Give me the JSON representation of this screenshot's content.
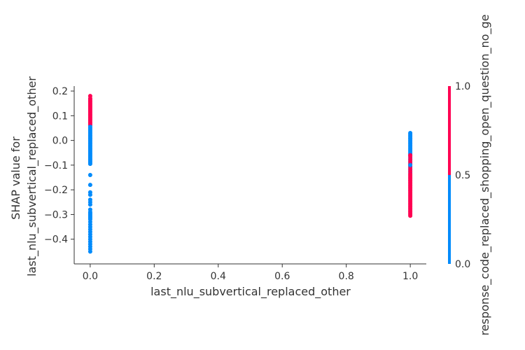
{
  "chart_data": {
    "type": "scatter",
    "title": "",
    "xlabel": "last_nlu_subvertical_replaced_other",
    "ylabel_lines": [
      "SHAP value for",
      "last_nlu_subvertical_replaced_other"
    ],
    "xlim": [
      -0.05,
      1.05
    ],
    "ylim": [
      -0.5,
      0.22
    ],
    "x_ticks": [
      0.0,
      0.2,
      0.4,
      0.6,
      0.8,
      1.0
    ],
    "x_tick_labels": [
      "0.0",
      "0.2",
      "0.4",
      "0.6",
      "0.8",
      "1.0"
    ],
    "y_ticks": [
      0.2,
      0.1,
      0.0,
      -0.1,
      -0.2,
      -0.3,
      -0.4
    ],
    "y_tick_labels": [
      "0.2",
      "0.1",
      "0.0",
      "−0.1",
      "−0.2",
      "−0.3",
      "−0.4"
    ],
    "grid": false,
    "colorbar": {
      "label": "response_code_replaced_shopping_open_question_no_ge",
      "ticks": [
        1.0,
        0.5,
        0.0
      ],
      "tick_labels": [
        "1.0",
        "0.5",
        "0.0"
      ],
      "color_high": "#ff0052",
      "color_low": "#008bfb"
    },
    "series": [
      {
        "x": [
          0,
          0,
          0,
          0,
          0,
          0,
          0,
          0,
          0,
          0,
          0,
          0,
          0,
          0,
          0,
          0,
          0,
          0,
          0,
          0,
          0,
          0,
          0,
          0,
          0,
          0,
          0,
          0,
          0,
          0,
          0,
          0,
          0,
          0,
          0,
          0,
          0,
          0,
          0,
          0,
          0,
          0,
          0,
          0,
          0,
          0,
          0,
          0,
          0,
          0,
          0,
          0,
          0,
          0,
          0,
          0,
          0,
          0,
          0,
          0,
          0,
          0,
          0,
          0,
          0,
          0,
          0,
          0,
          0,
          0,
          0,
          0,
          0,
          0,
          0,
          0,
          0,
          0,
          0,
          0,
          0,
          0,
          0
        ],
        "y": [
          0.18,
          0.17,
          0.16,
          0.15,
          0.14,
          0.13,
          0.12,
          0.11,
          0.1,
          0.09,
          0.08,
          0.07,
          0.06,
          0.05,
          0.04,
          0.035,
          0.025,
          0.015,
          0.005,
          -0.005,
          -0.015,
          -0.025,
          -0.035,
          -0.045,
          -0.055,
          -0.065,
          -0.075,
          -0.085,
          -0.095,
          -0.14,
          -0.18,
          -0.21,
          -0.22,
          -0.24,
          -0.25,
          -0.26,
          -0.28,
          -0.29,
          -0.3,
          -0.31,
          -0.32,
          -0.33,
          -0.34,
          -0.35,
          -0.36,
          -0.37,
          -0.38,
          -0.39,
          -0.4,
          -0.41,
          -0.42,
          -0.43,
          -0.44,
          -0.45,
          0.165,
          0.155,
          0.145,
          0.135,
          0.125,
          0.115,
          0.105,
          0.095,
          0.085,
          0.075,
          0.065,
          0.055,
          0.045,
          0.03,
          0.02,
          0.01,
          0.0,
          -0.01,
          -0.02,
          -0.03,
          -0.04,
          -0.05,
          -0.06,
          -0.07,
          -0.08,
          -0.09,
          -0.295,
          -0.305,
          -0.315
        ],
        "color_value": [
          1,
          1,
          1,
          1,
          1,
          1,
          1,
          1,
          1,
          1,
          1,
          1,
          0,
          0,
          0,
          0,
          0,
          0,
          0,
          0,
          0,
          0,
          0,
          0,
          0,
          0,
          0,
          0,
          0,
          0,
          0,
          0,
          0,
          0,
          0,
          0,
          0,
          0,
          0,
          0,
          0,
          0,
          0,
          0,
          0,
          0,
          0,
          0,
          0,
          0,
          0,
          0,
          0,
          0,
          1,
          1,
          1,
          1,
          1,
          1,
          1,
          1,
          1,
          1,
          1,
          0,
          0,
          0,
          0,
          0,
          0,
          0,
          0,
          0,
          0,
          0,
          0,
          0,
          0,
          0,
          0,
          0,
          0
        ]
      },
      {
        "x": [
          1,
          1,
          1,
          1,
          1,
          1,
          1,
          1,
          1,
          1,
          1,
          1,
          1,
          1,
          1,
          1,
          1,
          1,
          1,
          1,
          1,
          1,
          1,
          1,
          1,
          1,
          1,
          1,
          1,
          1,
          1,
          1,
          1,
          1,
          1,
          1,
          1,
          1,
          1,
          1,
          1,
          1,
          1,
          1,
          1,
          1,
          1,
          1,
          1,
          1,
          1,
          1,
          1,
          1,
          1,
          1,
          1,
          1,
          1,
          1,
          1,
          1,
          1,
          1,
          1,
          1,
          1,
          1,
          1,
          1
        ],
        "y": [
          0.03,
          0.025,
          0.02,
          0.015,
          0.01,
          0.005,
          0.0,
          -0.005,
          -0.01,
          -0.015,
          -0.02,
          -0.025,
          -0.03,
          -0.035,
          -0.04,
          -0.045,
          -0.05,
          -0.055,
          -0.06,
          -0.07,
          -0.08,
          -0.09,
          -0.1,
          -0.11,
          -0.12,
          -0.13,
          -0.06,
          -0.065,
          -0.075,
          -0.085,
          -0.095,
          -0.105,
          -0.115,
          -0.125,
          -0.135,
          -0.14,
          -0.15,
          -0.16,
          -0.17,
          -0.18,
          -0.19,
          -0.2,
          -0.21,
          -0.22,
          -0.23,
          -0.24,
          -0.25,
          -0.26,
          -0.27,
          -0.28,
          -0.29,
          -0.3,
          -0.305,
          -0.145,
          -0.155,
          -0.165,
          -0.175,
          -0.185,
          -0.195,
          -0.205,
          -0.215,
          -0.225,
          -0.235,
          -0.245,
          -0.255,
          -0.265,
          -0.275,
          -0.285,
          -0.295,
          -0.1
        ],
        "color_value": [
          0,
          0,
          0,
          0,
          0,
          0,
          0,
          0,
          0,
          0,
          0,
          0,
          0,
          0,
          0,
          0,
          0,
          0,
          0,
          0,
          0,
          0,
          0,
          0,
          0,
          0,
          1,
          1,
          1,
          1,
          1,
          1,
          1,
          1,
          1,
          1,
          1,
          1,
          1,
          1,
          1,
          1,
          1,
          1,
          1,
          1,
          1,
          1,
          1,
          1,
          1,
          1,
          1,
          1,
          1,
          1,
          1,
          1,
          1,
          1,
          1,
          1,
          1,
          1,
          1,
          1,
          1,
          1,
          1,
          0
        ]
      }
    ]
  }
}
